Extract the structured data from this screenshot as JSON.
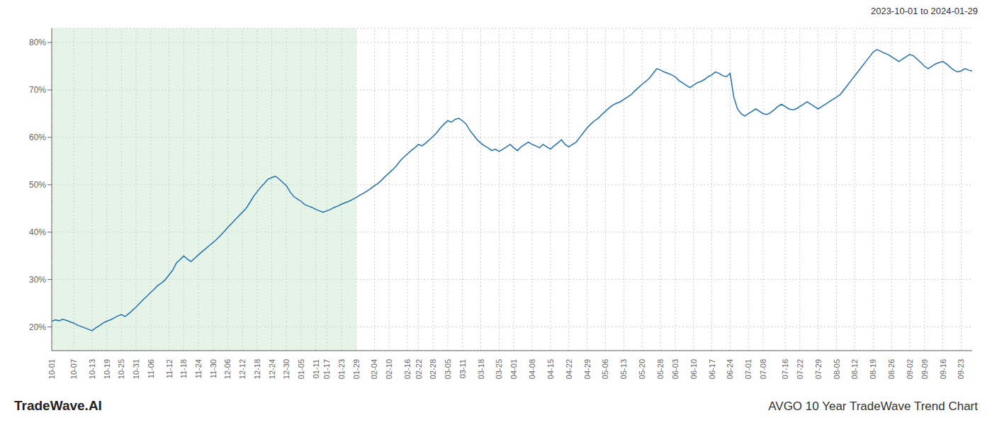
{
  "chart_data": {
    "type": "line",
    "title": "AVGO 10 Year TradeWave Trend Chart",
    "subtitle": "2023-10-01 to 2024-01-29",
    "annotations": [
      "TradeWave.AI"
    ],
    "color": "#2070b4",
    "grid": true,
    "ylim": [
      15,
      83
    ],
    "yticks": [
      {
        "value": 20,
        "label": "20%"
      },
      {
        "value": 30,
        "label": "30%"
      },
      {
        "value": 40,
        "label": "40%"
      },
      {
        "value": 50,
        "label": "50%"
      },
      {
        "value": 60,
        "label": "60%"
      },
      {
        "value": 70,
        "label": "70%"
      },
      {
        "value": 80,
        "label": "80%"
      }
    ],
    "shaded_range": {
      "from": "10-01",
      "to": "01-29",
      "color": "#c8e6c9"
    },
    "categories": [
      "10-01",
      null,
      null,
      null,
      null,
      null,
      "10-07",
      null,
      null,
      null,
      null,
      "10-13",
      null,
      null,
      null,
      "10-19",
      null,
      null,
      null,
      "10-25",
      null,
      null,
      null,
      "10-31",
      null,
      null,
      null,
      "11-06",
      null,
      null,
      null,
      null,
      "11-12",
      null,
      null,
      null,
      "11-18",
      null,
      null,
      null,
      "11-24",
      null,
      null,
      null,
      "11-30",
      null,
      null,
      null,
      "12-06",
      null,
      null,
      null,
      "12-12",
      null,
      null,
      null,
      "12-18",
      null,
      null,
      null,
      "12-24",
      null,
      null,
      null,
      "12-30",
      null,
      null,
      null,
      "01-05",
      null,
      null,
      null,
      "01-11",
      null,
      null,
      "01-17",
      null,
      null,
      null,
      "01-23",
      null,
      null,
      null,
      "01-29",
      null,
      null,
      null,
      null,
      "02-04",
      null,
      null,
      null,
      "02-10",
      null,
      null,
      null,
      null,
      "02-16",
      null,
      null,
      "02-22",
      null,
      null,
      null,
      "02-28",
      null,
      null,
      null,
      "03-05",
      null,
      null,
      null,
      "03-11",
      null,
      null,
      null,
      null,
      "03-18",
      null,
      null,
      null,
      null,
      "03-25",
      null,
      null,
      null,
      "04-01",
      null,
      null,
      null,
      null,
      "04-08",
      null,
      null,
      null,
      null,
      "04-15",
      null,
      null,
      null,
      null,
      "04-22",
      null,
      null,
      null,
      null,
      "04-29",
      null,
      null,
      null,
      null,
      "05-06",
      null,
      null,
      null,
      null,
      "05-13",
      null,
      null,
      null,
      null,
      "05-20",
      null,
      null,
      null,
      null,
      "05-28",
      null,
      null,
      null,
      "06-03",
      null,
      null,
      null,
      null,
      "06-10",
      null,
      null,
      null,
      null,
      "06-17",
      null,
      null,
      null,
      null,
      "06-24",
      null,
      null,
      null,
      null,
      "07-01",
      null,
      null,
      null,
      "07-08",
      null,
      null,
      null,
      null,
      null,
      "07-16",
      null,
      null,
      null,
      "07-22",
      null,
      null,
      null,
      null,
      "07-29",
      null,
      null,
      null,
      null,
      "08-05",
      null,
      null,
      null,
      null,
      "08-12",
      null,
      null,
      null,
      null,
      "08-19",
      null,
      null,
      null,
      null,
      "08-26",
      null,
      null,
      null,
      null,
      "09-02",
      null,
      null,
      null,
      "09-09",
      null,
      null,
      null,
      null,
      "09-16",
      null,
      null,
      null,
      null,
      "09-23",
      null,
      null,
      null
    ],
    "values": [
      21.2,
      21.5,
      21.3,
      21.6,
      21.4,
      21.1,
      20.8,
      20.4,
      20.1,
      19.8,
      19.5,
      19.2,
      19.8,
      20.3,
      20.8,
      21.2,
      21.5,
      21.9,
      22.3,
      22.6,
      22.2,
      22.8,
      23.5,
      24.2,
      25.0,
      25.8,
      26.5,
      27.3,
      28.0,
      28.8,
      29.3,
      30.0,
      31.0,
      32.0,
      33.5,
      34.2,
      35.0,
      34.3,
      33.8,
      34.5,
      35.2,
      35.9,
      36.5,
      37.2,
      37.8,
      38.5,
      39.3,
      40.1,
      41.0,
      41.8,
      42.6,
      43.4,
      44.2,
      45.0,
      46.2,
      47.5,
      48.5,
      49.5,
      50.3,
      51.2,
      51.5,
      51.8,
      51.2,
      50.5,
      49.8,
      48.5,
      47.5,
      47.0,
      46.5,
      45.8,
      45.5,
      45.2,
      44.8,
      44.5,
      44.2,
      44.5,
      44.8,
      45.2,
      45.5,
      45.9,
      46.2,
      46.5,
      46.9,
      47.3,
      47.8,
      48.2,
      48.7,
      49.2,
      49.8,
      50.3,
      51.0,
      51.8,
      52.5,
      53.2,
      54.0,
      55.0,
      55.8,
      56.5,
      57.2,
      57.8,
      58.5,
      58.2,
      58.8,
      59.5,
      60.2,
      61.0,
      62.0,
      62.8,
      63.5,
      63.2,
      63.8,
      64.0,
      63.5,
      62.8,
      61.5,
      60.5,
      59.5,
      58.8,
      58.2,
      57.8,
      57.2,
      57.5,
      57.0,
      57.5,
      58.0,
      58.5,
      57.8,
      57.2,
      58.0,
      58.5,
      59.0,
      58.5,
      58.2,
      57.8,
      58.5,
      58.0,
      57.5,
      58.2,
      58.8,
      59.5,
      58.5,
      58.0,
      58.5,
      59.0,
      60.0,
      61.0,
      62.0,
      62.8,
      63.5,
      64.0,
      64.8,
      65.5,
      66.2,
      66.8,
      67.2,
      67.5,
      68.0,
      68.5,
      69.0,
      69.8,
      70.5,
      71.2,
      71.8,
      72.5,
      73.5,
      74.5,
      74.2,
      73.8,
      73.5,
      73.2,
      72.8,
      72.0,
      71.5,
      71.0,
      70.5,
      71.0,
      71.5,
      71.8,
      72.2,
      72.8,
      73.2,
      73.8,
      73.5,
      73.0,
      72.8,
      73.5,
      68.5,
      66.0,
      65.0,
      64.5,
      65.0,
      65.5,
      66.0,
      65.5,
      65.0,
      64.8,
      65.2,
      65.8,
      66.5,
      67.0,
      66.5,
      66.0,
      65.8,
      66.0,
      66.5,
      67.0,
      67.5,
      67.0,
      66.5,
      66.0,
      66.5,
      67.0,
      67.5,
      68.0,
      68.5,
      69.0,
      70.0,
      71.0,
      72.0,
      73.0,
      74.0,
      75.0,
      76.0,
      77.0,
      78.0,
      78.5,
      78.2,
      77.8,
      77.5,
      77.0,
      76.5,
      76.0,
      76.5,
      77.0,
      77.5,
      77.2,
      76.5,
      75.8,
      75.0,
      74.5,
      75.0,
      75.5,
      75.8,
      76.0,
      75.5,
      74.8,
      74.2,
      73.8,
      74.0,
      74.5,
      74.2,
      74.0
    ]
  }
}
